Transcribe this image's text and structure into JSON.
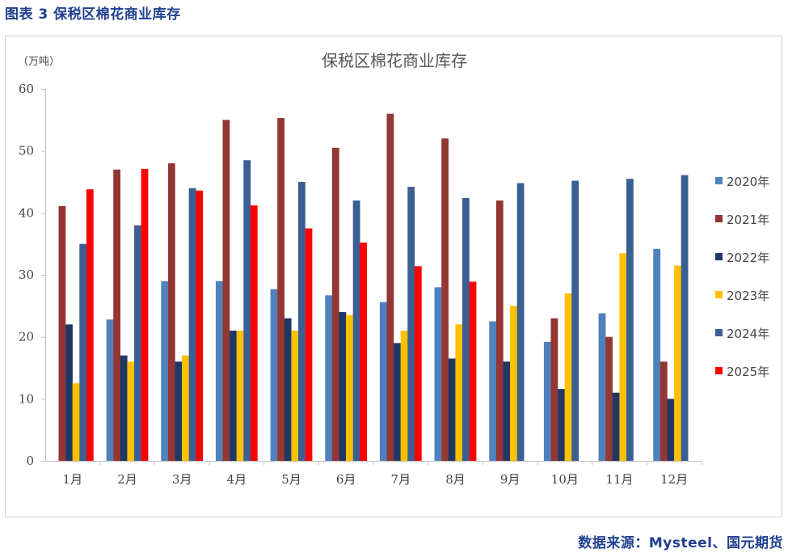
{
  "figure_label": "图表 3 保税区棉花商业库存",
  "source_text": "数据来源：Mysteel、国元期货",
  "chart_data": {
    "type": "bar",
    "title": "保税区棉花商业库存",
    "ylabel": "（万吨）",
    "xlabel": "",
    "ylim": [
      0,
      60
    ],
    "yticks": [
      0,
      10,
      20,
      30,
      40,
      50,
      60
    ],
    "categories": [
      "1月",
      "2月",
      "3月",
      "4月",
      "5月",
      "6月",
      "7月",
      "8月",
      "9月",
      "10月",
      "11月",
      "12月"
    ],
    "legend_position": "right",
    "series": [
      {
        "name": "2020年",
        "color": "#4f81bd",
        "values": [
          null,
          22.8,
          29,
          29,
          27.7,
          26.7,
          25.6,
          28,
          22.5,
          19.2,
          23.8,
          34.2
        ]
      },
      {
        "name": "2021年",
        "color": "#943634",
        "values": [
          41.1,
          47,
          48,
          55,
          55.3,
          50.5,
          56,
          52,
          42,
          23,
          20,
          16
        ]
      },
      {
        "name": "2022年",
        "color": "#1f3864",
        "values": [
          22,
          17,
          16,
          21,
          23,
          24,
          19,
          16.5,
          16,
          11.6,
          11,
          10
        ]
      },
      {
        "name": "2023年",
        "color": "#ffc000",
        "values": [
          12.5,
          16,
          17,
          21,
          21,
          23.5,
          21,
          22,
          25,
          27,
          33.5,
          31.5
        ]
      },
      {
        "name": "2024年",
        "color": "#3a5f93",
        "values": [
          35,
          38,
          44,
          48.5,
          45,
          42,
          44.2,
          42.4,
          44.8,
          45.2,
          45.5,
          46.1
        ]
      },
      {
        "name": "2025年",
        "color": "#ff0000",
        "values": [
          43.8,
          47.1,
          43.6,
          41.2,
          37.5,
          35.2,
          31.4,
          28.9,
          null,
          null,
          null,
          null
        ]
      }
    ]
  }
}
